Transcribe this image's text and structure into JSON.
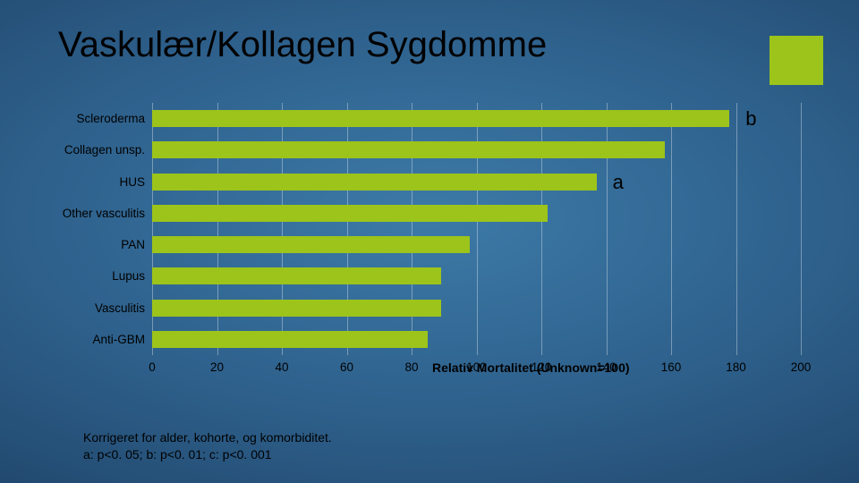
{
  "title": "Vaskulær/Kollagen Sygdomme",
  "accent_color": "#9cc41a",
  "chart": {
    "type": "bar-horizontal",
    "categories": [
      "Scleroderma",
      "Collagen unsp.",
      "HUS",
      "Other vasculitis",
      "PAN",
      "Lupus",
      "Vasculitis",
      "Anti-GBM"
    ],
    "values": [
      178,
      158,
      137,
      122,
      98,
      89,
      89,
      85
    ],
    "sig_labels": [
      "b",
      "",
      "a",
      "",
      "",
      "",
      "",
      ""
    ],
    "bar_color": "#9cc41a",
    "xlim": [
      0,
      200
    ],
    "xtick_step": 20,
    "xticks": [
      0,
      20,
      40,
      60,
      80,
      100,
      120,
      140,
      160,
      180,
      200
    ],
    "xaxis_title": "Relativ Mortalitet (Unknown=100)",
    "label_fontsize": 13.5,
    "title_fontsize": 40,
    "grid_color": "rgba(255,255,255,0.35)",
    "background": "radial-gradient blue"
  },
  "footnote_line1": "Korrigeret for alder, kohorte, og komorbiditet.",
  "footnote_line2": "a: p<0. 05; b: p<0. 01; c: p<0. 001"
}
